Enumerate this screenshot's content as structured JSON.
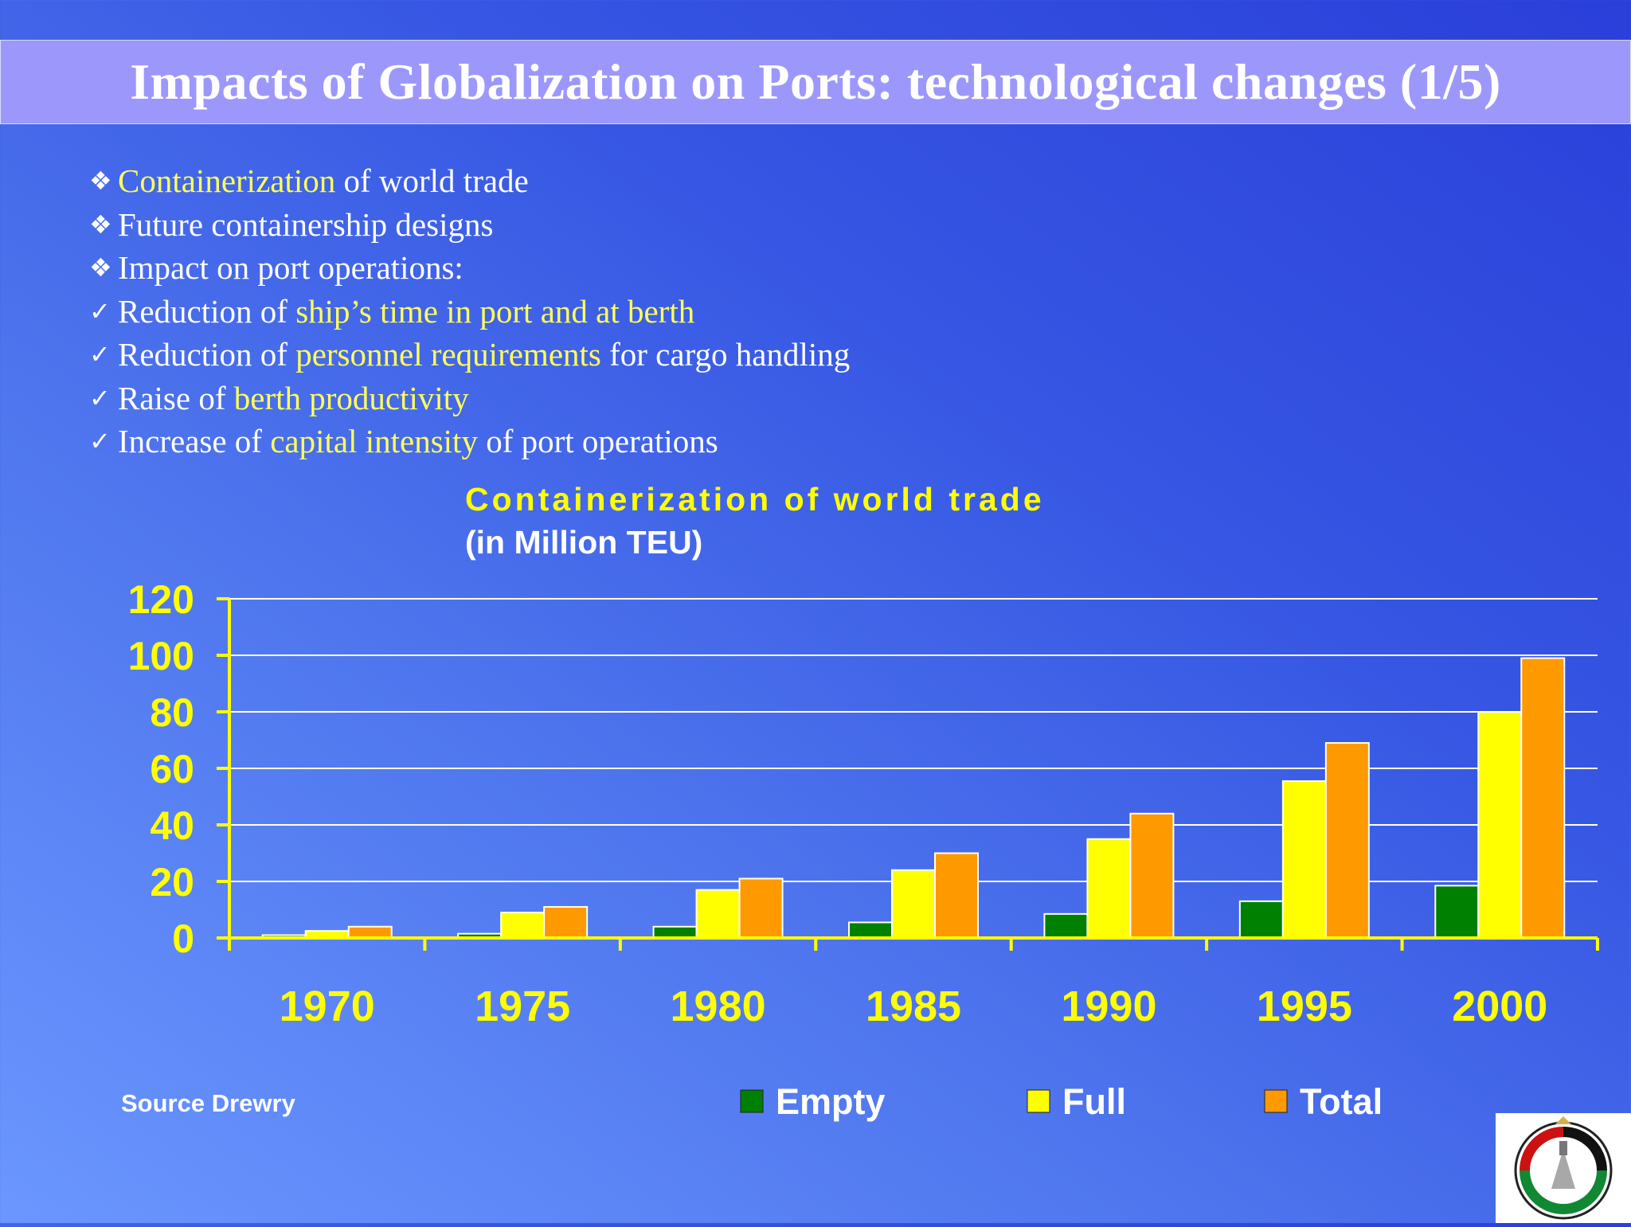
{
  "slide": {
    "title": "Impacts of Globalization on Ports: technological changes (1/5)",
    "bullets": [
      {
        "marker": "❖",
        "parts": [
          {
            "text": "Containerization",
            "hl": true
          },
          {
            "text": " of world trade",
            "hl": false
          }
        ]
      },
      {
        "marker": "❖",
        "parts": [
          {
            "text": "Future containership designs",
            "hl": false
          }
        ]
      },
      {
        "marker": "❖",
        "parts": [
          {
            "text": "Impact on port operations:",
            "hl": false
          }
        ]
      },
      {
        "marker": "✓",
        "parts": [
          {
            "text": "Reduction of ",
            "hl": false
          },
          {
            "text": "ship’s time in port and at berth",
            "hl": true
          }
        ]
      },
      {
        "marker": "✓",
        "parts": [
          {
            "text": "Reduction of ",
            "hl": false
          },
          {
            "text": "personnel requirements",
            "hl": true
          },
          {
            "text": " for cargo handling",
            "hl": false
          }
        ]
      },
      {
        "marker": "✓",
        "parts": [
          {
            "text": "Raise of ",
            "hl": false
          },
          {
            "text": "berth productivity",
            "hl": true
          }
        ]
      },
      {
        "marker": "✓",
        "parts": [
          {
            "text": "Increase of ",
            "hl": false
          },
          {
            "text": "capital intensity",
            "hl": true
          },
          {
            "text": " of port operations",
            "hl": false
          }
        ]
      }
    ],
    "source": "Source Drewry",
    "logo_icon": "ports-corporation-emblem-icon"
  },
  "chart_data": {
    "type": "bar",
    "title": "Containerization of world trade",
    "subtitle": "(in Million TEU)",
    "categories": [
      "1970",
      "1975",
      "1980",
      "1985",
      "1990",
      "1995",
      "2000"
    ],
    "series": [
      {
        "name": "Empty",
        "color": "#008000",
        "values": [
          1,
          1.5,
          4,
          5.5,
          8.5,
          13,
          18.5
        ]
      },
      {
        "name": "Full",
        "color": "#ffff00",
        "values": [
          2.5,
          9,
          17,
          24,
          35,
          55.5,
          80
        ]
      },
      {
        "name": "Total",
        "color": "#ff9900",
        "values": [
          4,
          11,
          21,
          30,
          44,
          69,
          99
        ]
      }
    ],
    "yticks": [
      "0",
      "20",
      "40",
      "60",
      "80",
      "100",
      "120"
    ],
    "ylim": [
      0,
      120
    ],
    "grid": true,
    "legend_position": "bottom"
  }
}
